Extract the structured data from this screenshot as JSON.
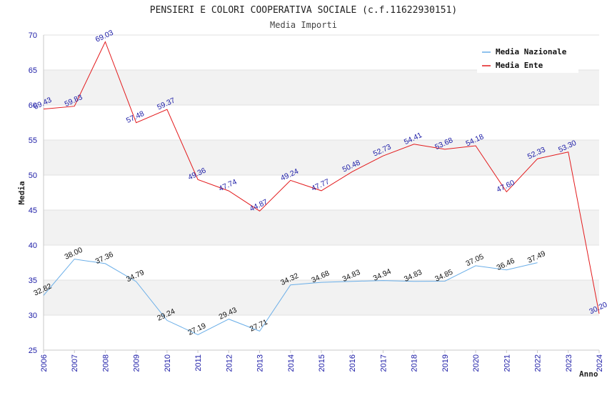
{
  "chart_data": {
    "type": "line",
    "title": "PENSIERI E COLORI COOPERATIVA SOCIALE (c.f.11622930151)",
    "subtitle": "Media Importi",
    "xlabel": "Anno",
    "ylabel": "Media",
    "ylim": [
      25,
      70
    ],
    "yticks": [
      25,
      30,
      35,
      40,
      45,
      50,
      55,
      60,
      65,
      70
    ],
    "grid": "horizontal bands",
    "legend_position": "top-right",
    "categories": [
      "2006",
      "2007",
      "2008",
      "2009",
      "2010",
      "2011",
      "2012",
      "2013",
      "2014",
      "2015",
      "2016",
      "2017",
      "2018",
      "2019",
      "2020",
      "2021",
      "2022",
      "2023",
      "2024"
    ],
    "series": [
      {
        "name": "Media Nazionale",
        "color": "#6aaee8",
        "values": [
          32.82,
          38.0,
          37.36,
          34.79,
          29.24,
          27.19,
          29.43,
          27.71,
          34.32,
          34.68,
          34.83,
          34.94,
          34.83,
          34.85,
          37.05,
          36.46,
          37.49,
          null,
          null
        ],
        "labels": [
          "32.82",
          "38.00",
          "37.36",
          "34.79",
          "29.24",
          "27.19",
          "29.43",
          "27.71",
          "34.32",
          "34.68",
          "34.83",
          "34.94",
          "34.83",
          "34.85",
          "37.05",
          "36.46",
          "37.49",
          null,
          null
        ]
      },
      {
        "name": "Media Ente",
        "color": "#e31a1c",
        "values": [
          59.43,
          59.83,
          69.03,
          57.48,
          59.37,
          49.36,
          47.74,
          44.87,
          49.24,
          47.77,
          50.48,
          52.73,
          54.41,
          53.68,
          54.18,
          47.6,
          52.33,
          53.3,
          30.2
        ],
        "labels": [
          "59.43",
          "59.83",
          "69.03",
          "57.48",
          "59.37",
          "49.36",
          "47.74",
          "44.87",
          "49.24",
          "47.77",
          "50.48",
          "52.73",
          "54.41",
          "53.68",
          "54.18",
          "47.60",
          "52.33",
          "53.30",
          "30.20"
        ]
      }
    ]
  }
}
